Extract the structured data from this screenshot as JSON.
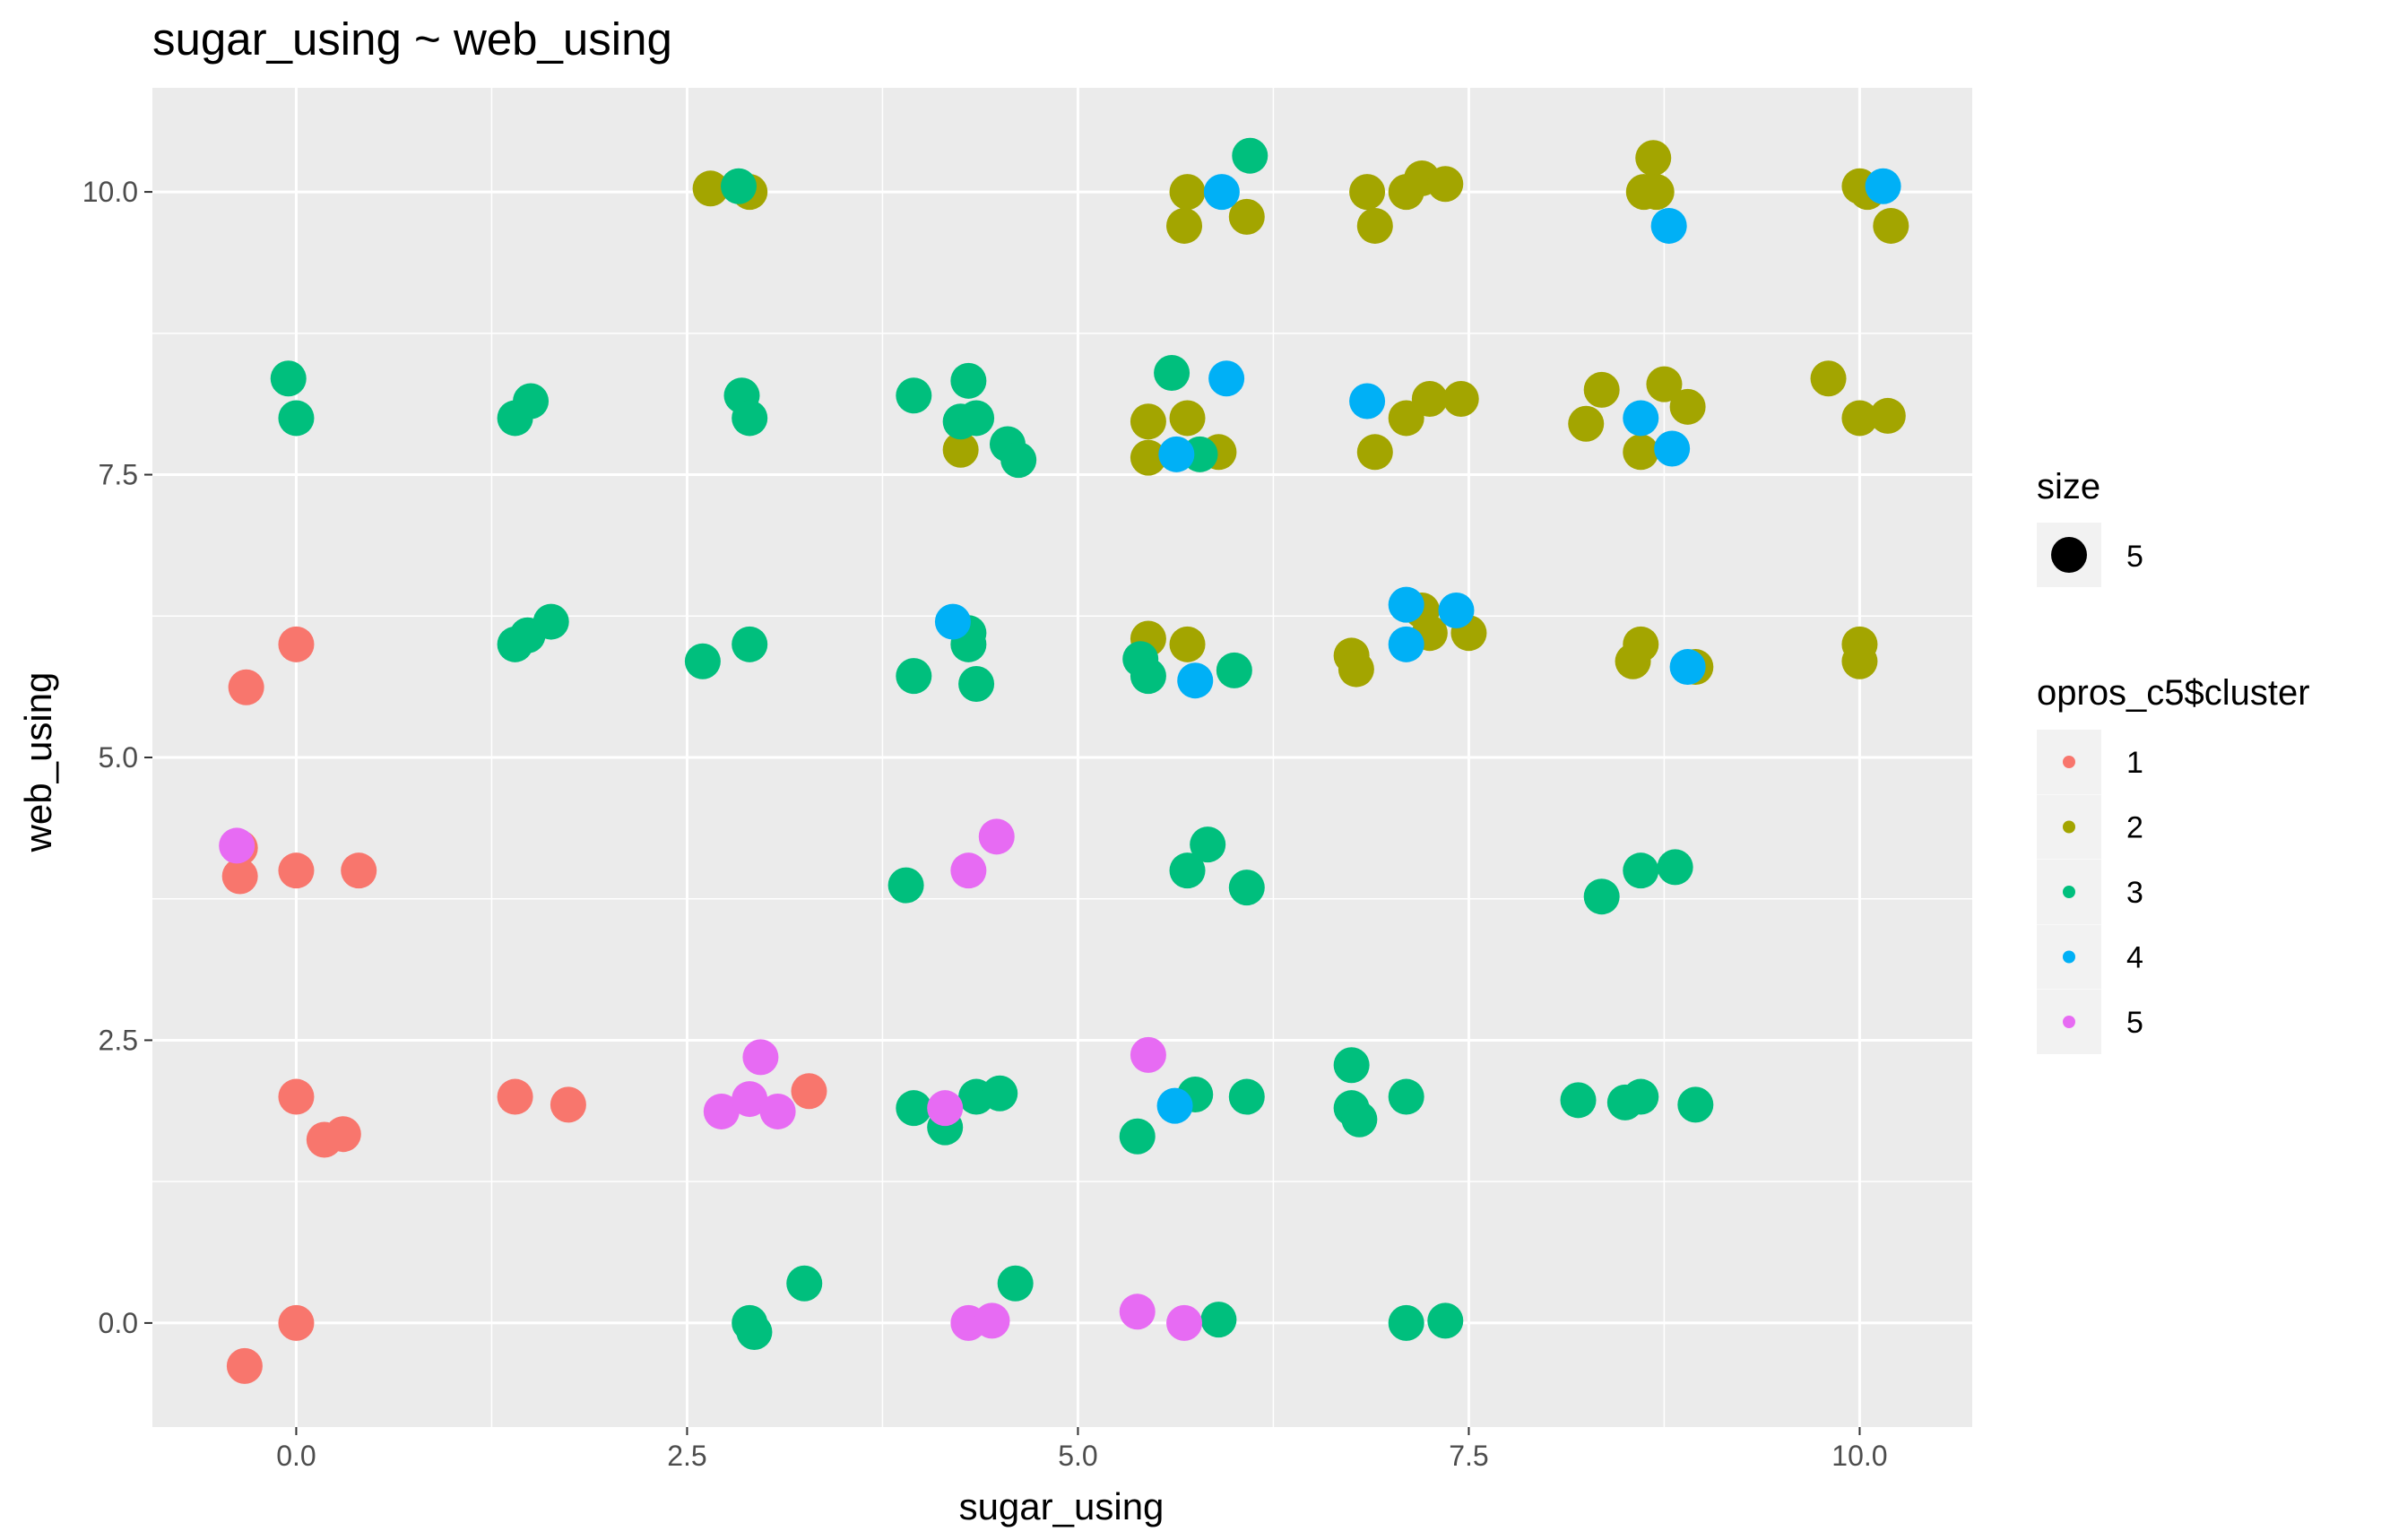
{
  "chart_data": {
    "type": "scatter",
    "title": "sugar_using ~ web_using",
    "xlabel": "sugar_using",
    "ylabel": "web_using",
    "xlim": [
      -0.92,
      10.72
    ],
    "ylim": [
      -0.92,
      10.92
    ],
    "x_ticks": [
      {
        "value": 0,
        "label": "0.0"
      },
      {
        "value": 2.5,
        "label": "2.5"
      },
      {
        "value": 5,
        "label": "5.0"
      },
      {
        "value": 7.5,
        "label": "7.5"
      },
      {
        "value": 10,
        "label": "10.0"
      }
    ],
    "y_ticks": [
      {
        "value": 0,
        "label": "0.0"
      },
      {
        "value": 2.5,
        "label": "2.5"
      },
      {
        "value": 5,
        "label": "5.0"
      },
      {
        "value": 7.5,
        "label": "7.5"
      },
      {
        "value": 10,
        "label": "10.0"
      }
    ],
    "grid": true,
    "legend_position": "right",
    "size_legend": {
      "title": "size",
      "label": "5"
    },
    "color_legend_title": "opros_c5$cluster",
    "series": [
      {
        "name": "1",
        "color": "#F8766D",
        "points": [
          [
            -0.32,
            5.62
          ],
          [
            0.0,
            6.0
          ],
          [
            -0.36,
            4.2
          ],
          [
            -0.36,
            3.95
          ],
          [
            0.0,
            4.0
          ],
          [
            0.4,
            4.0
          ],
          [
            0.0,
            2.0
          ],
          [
            0.18,
            1.62
          ],
          [
            0.3,
            1.67
          ],
          [
            1.4,
            2.0
          ],
          [
            1.74,
            1.93
          ],
          [
            3.28,
            2.05
          ],
          [
            0.0,
            0.0
          ],
          [
            -0.33,
            -0.38
          ]
        ]
      },
      {
        "name": "2",
        "color": "#A3A500",
        "points": [
          [
            2.65,
            10.03
          ],
          [
            2.9,
            10.0
          ],
          [
            5.7,
            10.0
          ],
          [
            5.68,
            9.7
          ],
          [
            6.08,
            9.78
          ],
          [
            6.85,
            10.0
          ],
          [
            6.9,
            9.7
          ],
          [
            7.1,
            10.0
          ],
          [
            7.2,
            10.12
          ],
          [
            7.35,
            10.07
          ],
          [
            8.62,
            10.0
          ],
          [
            8.68,
            10.3
          ],
          [
            8.7,
            10.0
          ],
          [
            10.0,
            10.05
          ],
          [
            10.05,
            10.0
          ],
          [
            10.2,
            9.7
          ],
          [
            5.45,
            7.97
          ],
          [
            5.7,
            8.0
          ],
          [
            5.45,
            7.65
          ],
          [
            5.9,
            7.7
          ],
          [
            6.9,
            7.7
          ],
          [
            7.1,
            8.0
          ],
          [
            7.25,
            8.17
          ],
          [
            7.45,
            8.17
          ],
          [
            8.25,
            7.95
          ],
          [
            8.35,
            8.25
          ],
          [
            8.6,
            7.7
          ],
          [
            8.75,
            8.3
          ],
          [
            8.9,
            8.1
          ],
          [
            9.8,
            8.35
          ],
          [
            10.0,
            8.0
          ],
          [
            10.18,
            8.02
          ],
          [
            4.25,
            7.72
          ],
          [
            5.45,
            6.05
          ],
          [
            5.7,
            6.0
          ],
          [
            6.75,
            5.9
          ],
          [
            6.78,
            5.78
          ],
          [
            7.2,
            6.3
          ],
          [
            7.25,
            6.1
          ],
          [
            7.5,
            6.1
          ],
          [
            8.55,
            5.85
          ],
          [
            8.6,
            6.0
          ],
          [
            8.95,
            5.8
          ],
          [
            10.0,
            6.0
          ],
          [
            10.0,
            5.85
          ]
        ]
      },
      {
        "name": "3",
        "color": "#00BF7D",
        "points": [
          [
            2.83,
            10.05
          ],
          [
            6.1,
            10.32
          ],
          [
            -0.05,
            8.35
          ],
          [
            0.0,
            8.0
          ],
          [
            1.4,
            8.0
          ],
          [
            1.5,
            8.15
          ],
          [
            2.85,
            8.2
          ],
          [
            2.9,
            8.0
          ],
          [
            3.95,
            8.2
          ],
          [
            4.25,
            7.97
          ],
          [
            4.3,
            8.33
          ],
          [
            4.35,
            8.0
          ],
          [
            4.55,
            7.77
          ],
          [
            4.62,
            7.63
          ],
          [
            5.6,
            8.4
          ],
          [
            5.78,
            7.68
          ],
          [
            1.4,
            6.0
          ],
          [
            1.48,
            6.08
          ],
          [
            1.63,
            6.2
          ],
          [
            2.6,
            5.85
          ],
          [
            2.9,
            6.0
          ],
          [
            3.95,
            5.72
          ],
          [
            4.3,
            6.1
          ],
          [
            4.3,
            6.0
          ],
          [
            4.35,
            5.65
          ],
          [
            5.4,
            5.87
          ],
          [
            5.45,
            5.72
          ],
          [
            6.0,
            5.77
          ],
          [
            3.9,
            3.87
          ],
          [
            5.7,
            4.0
          ],
          [
            5.83,
            4.23
          ],
          [
            6.08,
            3.85
          ],
          [
            8.35,
            3.77
          ],
          [
            8.6,
            4.0
          ],
          [
            8.82,
            4.03
          ],
          [
            3.95,
            1.9
          ],
          [
            4.15,
            1.73
          ],
          [
            4.35,
            2.0
          ],
          [
            4.5,
            2.03
          ],
          [
            5.38,
            1.65
          ],
          [
            5.75,
            2.02
          ],
          [
            6.08,
            2.0
          ],
          [
            6.75,
            2.28
          ],
          [
            6.75,
            1.9
          ],
          [
            6.8,
            1.8
          ],
          [
            7.1,
            2.0
          ],
          [
            8.2,
            1.97
          ],
          [
            8.5,
            1.95
          ],
          [
            8.6,
            2.0
          ],
          [
            8.95,
            1.93
          ],
          [
            2.9,
            0.0
          ],
          [
            2.93,
            -0.08
          ],
          [
            3.25,
            0.35
          ],
          [
            4.6,
            0.35
          ],
          [
            5.9,
            0.03
          ],
          [
            7.1,
            0.0
          ],
          [
            7.35,
            0.02
          ]
        ]
      },
      {
        "name": "4",
        "color": "#00B0F6",
        "points": [
          [
            5.92,
            10.0
          ],
          [
            8.78,
            9.7
          ],
          [
            10.15,
            10.05
          ],
          [
            5.95,
            8.35
          ],
          [
            5.63,
            7.68
          ],
          [
            6.85,
            8.15
          ],
          [
            8.6,
            8.0
          ],
          [
            8.8,
            7.73
          ],
          [
            4.2,
            6.2
          ],
          [
            5.75,
            5.68
          ],
          [
            7.1,
            6.35
          ],
          [
            7.1,
            6.0
          ],
          [
            7.42,
            6.3
          ],
          [
            8.9,
            5.8
          ],
          [
            5.62,
            1.92
          ]
        ]
      },
      {
        "name": "5",
        "color": "#E76BF3",
        "points": [
          [
            -0.38,
            4.22
          ],
          [
            4.3,
            4.0
          ],
          [
            4.48,
            4.3
          ],
          [
            2.72,
            1.87
          ],
          [
            2.9,
            1.98
          ],
          [
            2.97,
            2.35
          ],
          [
            3.08,
            1.87
          ],
          [
            4.15,
            1.9
          ],
          [
            5.45,
            2.37
          ],
          [
            4.3,
            0.0
          ],
          [
            4.45,
            0.02
          ],
          [
            5.38,
            0.1
          ],
          [
            5.68,
            0.0
          ]
        ]
      }
    ]
  }
}
